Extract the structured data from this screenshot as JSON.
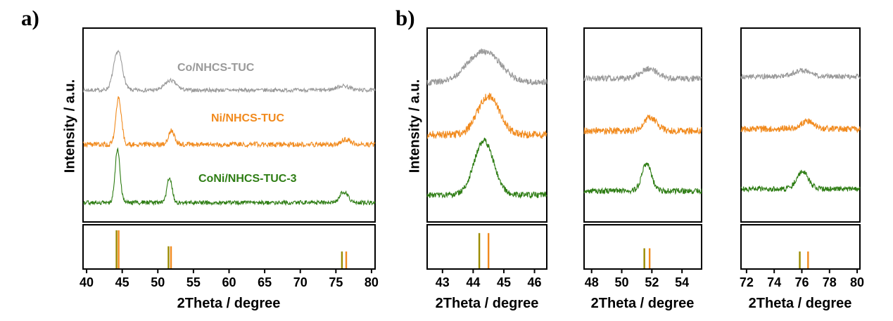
{
  "labels": {
    "panel_a": "a)",
    "panel_b": "b)",
    "ylabel": "Intensity / a.u."
  },
  "chart_data": {
    "type": "line",
    "title": "",
    "description": "XRD patterns of Co/NHCS-TUC, Ni/NHCS-TUC and CoNi/NHCS-TUC-3 with reference stick patterns; panel b shows magnified 2Theta regions",
    "grid": false,
    "legend_position": "inline-labels",
    "panels": [
      {
        "id": "a-main",
        "xlabel": "2Theta / degree",
        "ylabel": "Intensity / a.u.",
        "xlim": [
          39.5,
          80.5
        ],
        "xticks": [
          40,
          45,
          50,
          55,
          60,
          65,
          70,
          75,
          80
        ],
        "series": [
          {
            "name": "Co/NHCS-TUC",
            "color": "#9a9a9a",
            "baseline": 0.68,
            "noise": 0.01,
            "peaks": [
              {
                "center": 44.4,
                "height": 0.2,
                "width": 0.85
              },
              {
                "center": 51.8,
                "height": 0.05,
                "width": 1.1
              },
              {
                "center": 76.0,
                "height": 0.022,
                "width": 1.3
              }
            ]
          },
          {
            "name": "Ni/NHCS-TUC",
            "color": "#f18a1d",
            "baseline": 0.4,
            "noise": 0.013,
            "peaks": [
              {
                "center": 44.5,
                "height": 0.24,
                "width": 0.55
              },
              {
                "center": 51.9,
                "height": 0.07,
                "width": 0.6
              },
              {
                "center": 76.4,
                "height": 0.025,
                "width": 1.0
              }
            ]
          },
          {
            "name": "CoNi/NHCS-TUC-3",
            "color": "#2e7d14",
            "baseline": 0.1,
            "noise": 0.011,
            "peaks": [
              {
                "center": 44.35,
                "height": 0.27,
                "width": 0.5
              },
              {
                "center": 51.65,
                "height": 0.13,
                "width": 0.5
              },
              {
                "center": 76.1,
                "height": 0.055,
                "width": 0.8
              }
            ]
          }
        ],
        "reference_sticks": [
          {
            "x": 44.2,
            "height": 0.95,
            "color": "#9b8b00"
          },
          {
            "x": 44.5,
            "height": 0.95,
            "color": "#f18a1d"
          },
          {
            "x": 51.5,
            "height": 0.55,
            "color": "#9b8b00"
          },
          {
            "x": 51.85,
            "height": 0.55,
            "color": "#f18a1d"
          },
          {
            "x": 75.85,
            "height": 0.42,
            "color": "#9b8b00"
          },
          {
            "x": 76.45,
            "height": 0.42,
            "color": "#f18a1d"
          }
        ]
      },
      {
        "id": "b-zoom-44",
        "xlabel": "2Theta / degree",
        "ylabel": "Intensity / a.u.",
        "xlim": [
          42.5,
          46.4
        ],
        "xticks": [
          43,
          44,
          45,
          46
        ],
        "series": [
          {
            "name": "Co/NHCS-TUC",
            "color": "#9a9a9a",
            "baseline": 0.72,
            "noise": 0.016,
            "peaks": [
              {
                "center": 44.35,
                "height": 0.16,
                "width": 0.75
              }
            ]
          },
          {
            "name": "Ni/NHCS-TUC",
            "color": "#f18a1d",
            "baseline": 0.45,
            "noise": 0.02,
            "peaks": [
              {
                "center": 44.5,
                "height": 0.2,
                "width": 0.5
              }
            ]
          },
          {
            "name": "CoNi/NHCS-TUC-3",
            "color": "#2e7d14",
            "baseline": 0.14,
            "noise": 0.015,
            "peaks": [
              {
                "center": 44.35,
                "height": 0.28,
                "width": 0.45
              }
            ]
          }
        ],
        "reference_sticks": [
          {
            "x": 44.2,
            "height": 0.88,
            "color": "#9b8b00"
          },
          {
            "x": 44.5,
            "height": 0.88,
            "color": "#f18a1d"
          }
        ]
      },
      {
        "id": "b-zoom-52",
        "xlabel": "2Theta / degree",
        "xlim": [
          47.5,
          55.3
        ],
        "xticks": [
          48,
          50,
          52,
          54
        ],
        "series": [
          {
            "name": "Co/NHCS-TUC",
            "color": "#9a9a9a",
            "baseline": 0.74,
            "noise": 0.015,
            "peaks": [
              {
                "center": 51.8,
                "height": 0.05,
                "width": 0.8
              }
            ]
          },
          {
            "name": "Ni/NHCS-TUC",
            "color": "#f18a1d",
            "baseline": 0.47,
            "noise": 0.018,
            "peaks": [
              {
                "center": 51.9,
                "height": 0.07,
                "width": 0.6
              }
            ]
          },
          {
            "name": "CoNi/NHCS-TUC-3",
            "color": "#2e7d14",
            "baseline": 0.16,
            "noise": 0.014,
            "peaks": [
              {
                "center": 51.65,
                "height": 0.14,
                "width": 0.45
              }
            ]
          }
        ],
        "reference_sticks": [
          {
            "x": 51.5,
            "height": 0.5,
            "color": "#9b8b00"
          },
          {
            "x": 51.85,
            "height": 0.5,
            "color": "#f18a1d"
          }
        ]
      },
      {
        "id": "b-zoom-76",
        "xlabel": "2Theta / degree",
        "xlim": [
          71.6,
          80.2
        ],
        "xticks": [
          72,
          74,
          76,
          78,
          80
        ],
        "series": [
          {
            "name": "Co/NHCS-TUC",
            "color": "#9a9a9a",
            "baseline": 0.75,
            "noise": 0.013,
            "peaks": [
              {
                "center": 76.0,
                "height": 0.03,
                "width": 0.9
              }
            ]
          },
          {
            "name": "Ni/NHCS-TUC",
            "color": "#f18a1d",
            "baseline": 0.48,
            "noise": 0.016,
            "peaks": [
              {
                "center": 76.4,
                "height": 0.04,
                "width": 0.7
              }
            ]
          },
          {
            "name": "CoNi/NHCS-TUC-3",
            "color": "#2e7d14",
            "baseline": 0.17,
            "noise": 0.013,
            "peaks": [
              {
                "center": 76.05,
                "height": 0.09,
                "width": 0.6
              }
            ]
          }
        ],
        "reference_sticks": [
          {
            "x": 75.85,
            "height": 0.42,
            "color": "#9b8b00"
          },
          {
            "x": 76.45,
            "height": 0.42,
            "color": "#f18a1d"
          }
        ]
      }
    ]
  }
}
